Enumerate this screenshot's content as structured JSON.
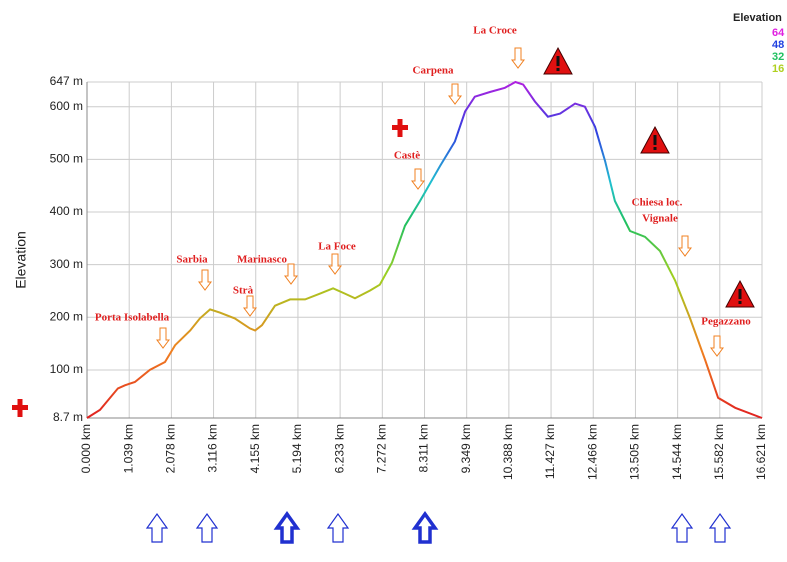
{
  "chart_data": {
    "type": "line",
    "ylabel": "Elevation",
    "legend_title": "Elevation",
    "legend": [
      {
        "name": "64",
        "color": "#e020e0"
      },
      {
        "name": "48",
        "color": "#2040e0"
      },
      {
        "name": "32",
        "color": "#20c060"
      },
      {
        "name": "16",
        "color": "#b0d020"
      }
    ],
    "annotations": [
      "Porta Isolabella",
      "Sarbia",
      "Marinasco",
      "Strà",
      "La Foce",
      "Castè",
      "Carpena",
      "La Croce",
      "Chiesa loc.",
      "Vignale",
      "Pegazzano"
    ],
    "x": [
      0,
      0.32,
      0.76,
      0.94,
      1.18,
      1.55,
      1.92,
      2.17,
      2.54,
      2.78,
      3.03,
      3.27,
      3.64,
      4.01,
      4.14,
      4.31,
      4.63,
      5.0,
      5.37,
      5.74,
      6.06,
      6.35,
      6.6,
      6.97,
      7.21,
      7.51,
      7.83,
      8.2,
      8.69,
      9.06,
      9.31,
      9.55,
      9.92,
      10.29,
      10.55,
      10.74,
      11.03,
      11.35,
      11.65,
      12.02,
      12.26,
      12.51,
      12.76,
      13.0,
      13.37,
      13.74,
      14.11,
      14.48,
      14.85,
      15.22,
      15.54,
      15.96,
      16.621
    ],
    "values": [
      8.7,
      24,
      65,
      71,
      77,
      100,
      115,
      147,
      175,
      198,
      215,
      209,
      198,
      179,
      175,
      185,
      222,
      234,
      234,
      245,
      255,
      245,
      236,
      251,
      262,
      304,
      374,
      421,
      487,
      534,
      591,
      619,
      628,
      636,
      647,
      642,
      610,
      581,
      587,
      606,
      600,
      562,
      496,
      421,
      364,
      353,
      326,
      270,
      198,
      119,
      47,
      28,
      8.7
    ],
    "xlim": [
      0,
      16.621
    ],
    "ylim": [
      8.7,
      647
    ],
    "xticks": [
      {
        "value": 0,
        "label": "0.000 km"
      },
      {
        "value": 1.039,
        "label": "1.039 km"
      },
      {
        "value": 2.078,
        "label": "2.078 km"
      },
      {
        "value": 3.116,
        "label": "3.116 km"
      },
      {
        "value": 4.155,
        "label": "4.155 km"
      },
      {
        "value": 5.194,
        "label": "5.194 km"
      },
      {
        "value": 6.233,
        "label": "6.233 km"
      },
      {
        "value": 7.272,
        "label": "7.272 km"
      },
      {
        "value": 8.311,
        "label": "8.311 km"
      },
      {
        "value": 9.349,
        "label": "9.349 km"
      },
      {
        "value": 10.388,
        "label": "10.388 km"
      },
      {
        "value": 11.427,
        "label": "11.427 km"
      },
      {
        "value": 12.466,
        "label": "12.466 km"
      },
      {
        "value": 13.505,
        "label": "13.505 km"
      },
      {
        "value": 14.544,
        "label": "14.544 km"
      },
      {
        "value": 15.582,
        "label": "15.582 km"
      },
      {
        "value": 16.621,
        "label": "16.621 km"
      }
    ],
    "yticks": [
      {
        "value": 8.7,
        "label": "8.7 m"
      },
      {
        "value": 100,
        "label": "100 m"
      },
      {
        "value": 200,
        "label": "200 m"
      },
      {
        "value": 300,
        "label": "300 m"
      },
      {
        "value": 400,
        "label": "400 m"
      },
      {
        "value": 500,
        "label": "500 m"
      },
      {
        "value": 600,
        "label": "600 m"
      },
      {
        "value": 647,
        "label": "647 m"
      }
    ],
    "grid": true
  }
}
